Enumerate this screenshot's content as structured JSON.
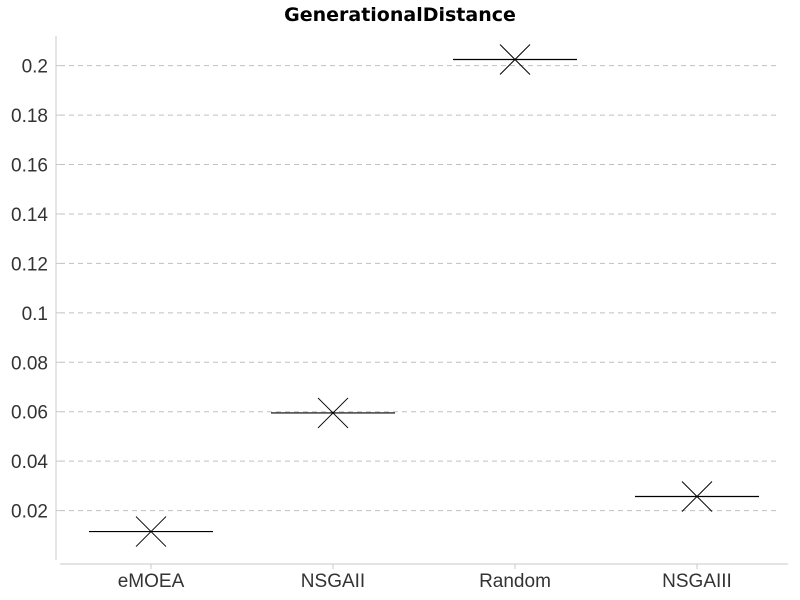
{
  "chart_data": {
    "type": "box",
    "title": "GenerationalDistance",
    "xlabel": "",
    "ylabel": "",
    "categories": [
      "eMOEA",
      "NSGAII",
      "Random",
      "NSGAIII"
    ],
    "values": [
      0.0115,
      0.0595,
      0.2025,
      0.0257
    ],
    "yticks": [
      "0.02",
      "0.04",
      "0.06",
      "0.08",
      "0.1",
      "0.12",
      "0.14",
      "0.16",
      "0.18",
      "0.2"
    ],
    "ylim": [
      0.0,
      0.212
    ],
    "grid": true,
    "legend": "none",
    "colors": {
      "marker": "#000000",
      "grid": "#c0c0c0",
      "axis": "#c8c8c8",
      "text": "#333333"
    }
  }
}
